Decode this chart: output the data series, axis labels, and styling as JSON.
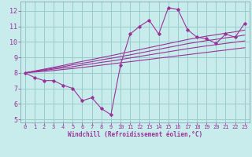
{
  "bg_color": "#c8ecec",
  "line_color": "#993399",
  "grid_color": "#99cccc",
  "text_color": "#993399",
  "xlabel": "Windchill (Refroidissement éolien,°C)",
  "xlim": [
    -0.5,
    23.5
  ],
  "ylim": [
    4.8,
    12.6
  ],
  "yticks": [
    5,
    6,
    7,
    8,
    9,
    10,
    11,
    12
  ],
  "xticks": [
    0,
    1,
    2,
    3,
    4,
    5,
    6,
    7,
    8,
    9,
    10,
    11,
    12,
    13,
    14,
    15,
    16,
    17,
    18,
    19,
    20,
    21,
    22,
    23
  ],
  "main_series": [
    8.0,
    7.7,
    7.5,
    7.5,
    7.2,
    7.0,
    6.2,
    6.4,
    5.7,
    5.3,
    8.5,
    10.5,
    11.0,
    11.4,
    10.5,
    12.2,
    12.1,
    10.8,
    10.3,
    10.2,
    9.9,
    10.5,
    10.3,
    11.2
  ],
  "reg_lines": [
    [
      8.0,
      8.05,
      8.1,
      8.15,
      8.22,
      8.28,
      8.35,
      8.42,
      8.5,
      8.57,
      8.65,
      8.72,
      8.8,
      8.87,
      8.95,
      9.02,
      9.1,
      9.17,
      9.25,
      9.32,
      9.4,
      9.47,
      9.55,
      9.62
    ],
    [
      8.0,
      8.08,
      8.16,
      8.24,
      8.32,
      8.4,
      8.5,
      8.58,
      8.68,
      8.76,
      8.86,
      8.96,
      9.06,
      9.16,
      9.26,
      9.36,
      9.46,
      9.56,
      9.65,
      9.74,
      9.82,
      9.9,
      9.98,
      10.06
    ],
    [
      8.0,
      8.1,
      8.2,
      8.3,
      8.4,
      8.52,
      8.62,
      8.72,
      8.84,
      8.94,
      9.05,
      9.16,
      9.28,
      9.4,
      9.52,
      9.64,
      9.76,
      9.88,
      9.98,
      10.08,
      10.16,
      10.26,
      10.34,
      10.44
    ],
    [
      8.0,
      8.12,
      8.24,
      8.36,
      8.48,
      8.62,
      8.74,
      8.86,
      8.99,
      9.11,
      9.24,
      9.37,
      9.5,
      9.63,
      9.76,
      9.89,
      10.02,
      10.15,
      10.26,
      10.37,
      10.46,
      10.56,
      10.65,
      10.76
    ]
  ]
}
